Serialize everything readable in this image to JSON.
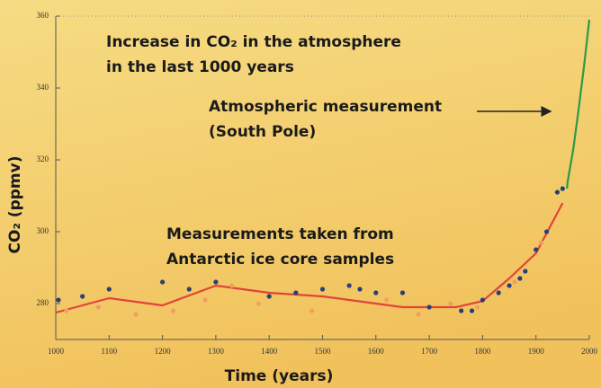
{
  "chart_data": {
    "type": "line",
    "title": [
      "Increase in CO₂ in the atmosphere",
      "in the last 1000 years"
    ],
    "ylabel": "CO₂ (ppmv)",
    "xlabel": "Time (years)",
    "annotations": [
      {
        "text": [
          "Atmospheric  measurement",
          "(South Pole)"
        ]
      },
      {
        "text": [
          "Measurements taken from",
          "Antarctic ice core samples"
        ]
      }
    ],
    "xlim": [
      1000,
      2000
    ],
    "xticks": [
      1000,
      1100,
      1200,
      1300,
      1400,
      1500,
      1600,
      1700,
      1800,
      1900,
      2000
    ],
    "ylim": [
      270,
      360
    ],
    "yticks": [
      280,
      300,
      320,
      340,
      360
    ],
    "series": [
      {
        "mode": "line",
        "color": "#e0443a",
        "x": [
          1000,
          1100,
          1200,
          1300,
          1400,
          1500,
          1650,
          1750,
          1800,
          1850,
          1900,
          1950
        ],
        "values": [
          277.5,
          281.5,
          279.5,
          285,
          283,
          282,
          279,
          279,
          280.7,
          287,
          294,
          308
        ]
      },
      {
        "mode": "markers",
        "color": "#f0a060",
        "x": [
          1020,
          1080,
          1150,
          1220,
          1280,
          1330,
          1380,
          1480,
          1620,
          1680,
          1740,
          1790,
          1860,
          1910
        ],
        "values": [
          278,
          279,
          277,
          278,
          281,
          285,
          280,
          278,
          281,
          277,
          280,
          279,
          286,
          297
        ]
      },
      {
        "mode": "markers",
        "color": "#2a3f7a",
        "x": [
          1005,
          1050,
          1100,
          1200,
          1250,
          1300,
          1400,
          1450,
          1500,
          1550,
          1570,
          1600,
          1650,
          1700,
          1760,
          1780,
          1800,
          1830,
          1850,
          1870,
          1880,
          1900,
          1920,
          1940,
          1950
        ],
        "values": [
          281,
          282,
          284,
          286,
          284,
          286,
          282,
          283,
          284,
          285,
          284,
          283,
          283,
          279,
          278,
          278,
          281,
          283,
          285,
          287,
          289,
          295,
          300,
          311,
          312
        ]
      },
      {
        "mode": "line",
        "color": "#2a9a4a",
        "x": [
          1958,
          1960,
          1970,
          1980,
          1990,
          2000
        ],
        "values": [
          312,
          314.5,
          323,
          334,
          346,
          359
        ]
      }
    ]
  }
}
